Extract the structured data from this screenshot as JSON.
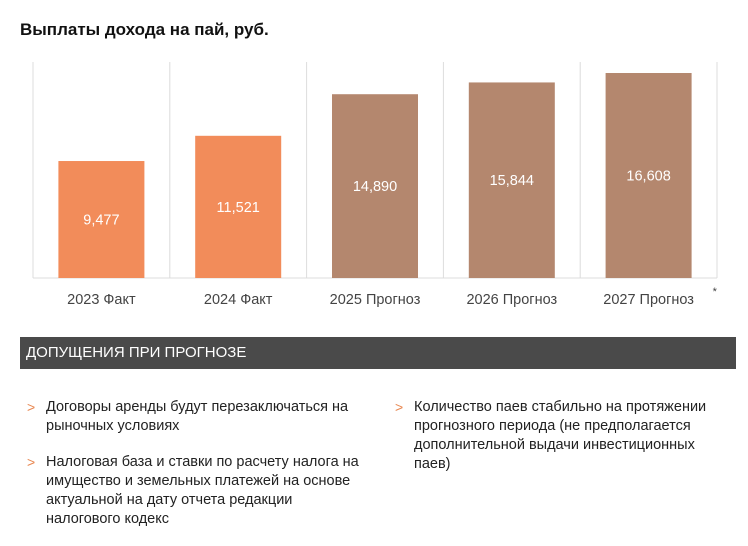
{
  "title": "Выплаты дохода на пай, руб.",
  "chart_data": {
    "type": "bar",
    "categories": [
      "2023 Факт",
      "2024 Факт",
      "2025 Прогноз",
      "2026 Прогноз",
      "2027 Прогноз"
    ],
    "values": [
      9477,
      11521,
      14890,
      15844,
      16608
    ],
    "value_labels": [
      "9,477",
      "11,521",
      "14,890",
      "15,844",
      "16,608"
    ],
    "colors": [
      "#f28c5a",
      "#f28c5a",
      "#b4876e",
      "#b4876e",
      "#b4876e"
    ],
    "footnote_marker": "*",
    "ylim": [
      0,
      17500
    ],
    "grid": "vertical separators"
  },
  "assumptions": {
    "heading": "ДОПУЩЕНИЯ ПРИ ПРОГНОЗЕ",
    "marker": ">",
    "left": [
      "Договоры аренды будут перезаключаться на рыночных условиях",
      "Налоговая база и ставки по расчету налога на имущество и земельных платежей на основе актуальной на дату отчета редакции налогового кодекс"
    ],
    "right": [
      "Количество паев стабильно на протяжении прогнозного периода (не предполагается дополнительной выдачи инвестиционных паев)"
    ]
  }
}
